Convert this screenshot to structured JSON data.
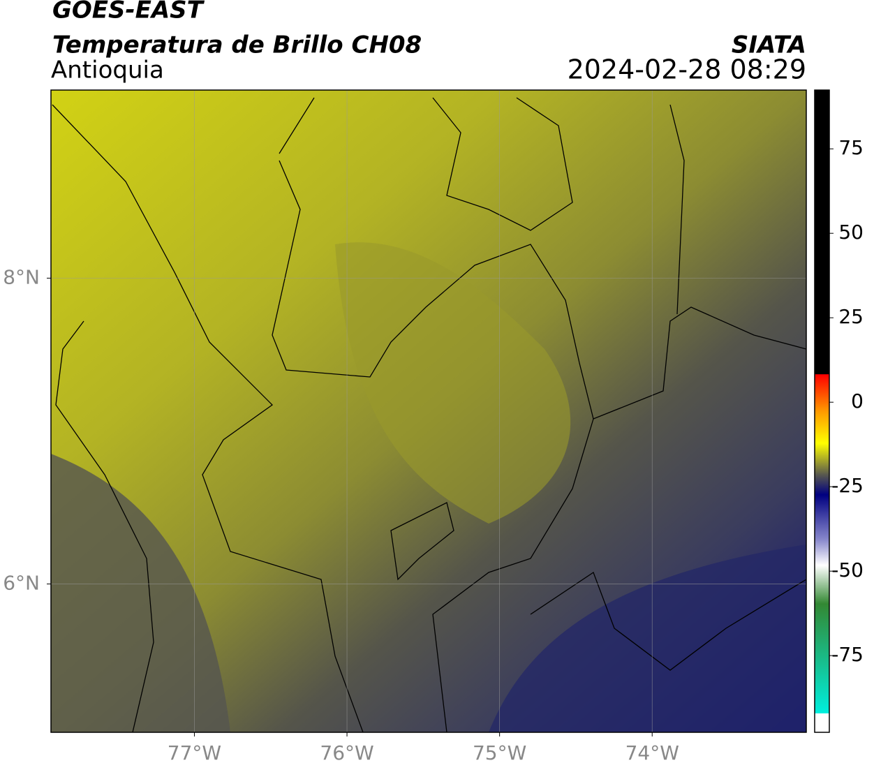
{
  "header": {
    "title": "GOES-EAST",
    "subtitle": "Temperatura de Brillo CH08",
    "region": "Antioquia",
    "source": "SIATA",
    "datetime": "2024-02-28 08:29"
  },
  "map": {
    "xlim": [
      -77.94,
      -72.99
    ],
    "ylim": [
      5.03,
      9.23
    ],
    "xticks": [
      {
        "value": -77,
        "label": "77°W"
      },
      {
        "value": -76,
        "label": "76°W"
      },
      {
        "value": -75,
        "label": "75°W"
      },
      {
        "value": -74,
        "label": "74°W"
      }
    ],
    "yticks": [
      {
        "value": 8,
        "label": "8°N"
      },
      {
        "value": 6,
        "label": "6°N"
      }
    ],
    "grid": true
  },
  "colorbar": {
    "ylim": [
      -97.7,
      92.4
    ],
    "yticks": [
      75,
      50,
      25,
      0,
      -25,
      -50,
      -75
    ]
  }
}
